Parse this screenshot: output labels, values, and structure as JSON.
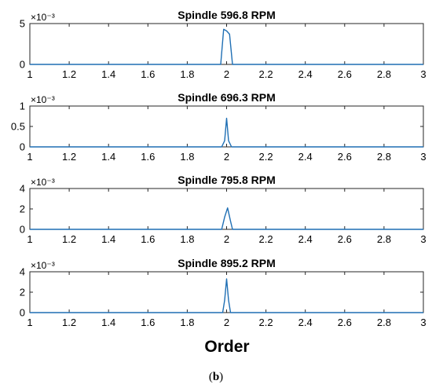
{
  "chart_data": [
    {
      "type": "line",
      "title": "Spindle 596.8 RPM",
      "xlim": [
        1,
        3
      ],
      "ylim": [
        0,
        5
      ],
      "y_scale_label": "×10⁻³",
      "xticks": [
        "1",
        "1.2",
        "1.4",
        "1.6",
        "1.8",
        "2",
        "2.2",
        "2.4",
        "2.6",
        "2.8",
        "3"
      ],
      "yticks": [
        "0",
        "5"
      ],
      "x": [
        1.0,
        1.97,
        1.985,
        2.0,
        2.015,
        2.03,
        3.0
      ],
      "y": [
        0.0,
        0.0,
        4.3,
        4.1,
        3.7,
        0.0,
        0.0
      ],
      "color": "#1f6fb4"
    },
    {
      "type": "line",
      "title": "Spindle 696.3 RPM",
      "xlim": [
        1,
        3
      ],
      "ylim": [
        0,
        1
      ],
      "y_scale_label": "×10⁻³",
      "xticks": [
        "1",
        "1.2",
        "1.4",
        "1.6",
        "1.8",
        "2",
        "2.2",
        "2.4",
        "2.6",
        "2.8",
        "3"
      ],
      "yticks": [
        "0",
        "0.5",
        "1"
      ],
      "x": [
        1.0,
        1.975,
        1.99,
        2.0,
        2.01,
        2.025,
        3.0
      ],
      "y": [
        0.0,
        0.0,
        0.15,
        0.7,
        0.15,
        0.0,
        0.0
      ],
      "color": "#1f6fb4"
    },
    {
      "type": "line",
      "title": "Spindle 795.8 RPM",
      "xlim": [
        1,
        3
      ],
      "ylim": [
        0,
        4
      ],
      "y_scale_label": "×10⁻³",
      "xticks": [
        "1",
        "1.2",
        "1.4",
        "1.6",
        "1.8",
        "2",
        "2.2",
        "2.4",
        "2.6",
        "2.8",
        "3"
      ],
      "yticks": [
        "0",
        "2",
        "4"
      ],
      "x": [
        1.0,
        1.975,
        1.99,
        2.005,
        2.02,
        2.03,
        3.0
      ],
      "y": [
        0.0,
        0.0,
        1.2,
        2.1,
        0.8,
        0.0,
        0.0
      ],
      "color": "#1f6fb4"
    },
    {
      "type": "line",
      "title": "Spindle 895.2 RPM",
      "xlim": [
        1,
        3
      ],
      "ylim": [
        0,
        4
      ],
      "y_scale_label": "×10⁻³",
      "xticks": [
        "1",
        "1.2",
        "1.4",
        "1.6",
        "1.8",
        "2",
        "2.2",
        "2.4",
        "2.6",
        "2.8",
        "3"
      ],
      "yticks": [
        "0",
        "2",
        "4"
      ],
      "x": [
        1.0,
        1.98,
        1.99,
        2.0,
        2.01,
        2.02,
        3.0
      ],
      "y": [
        0.0,
        0.0,
        1.2,
        3.3,
        1.2,
        0.0,
        0.0
      ],
      "color": "#1f6fb4"
    }
  ],
  "xlabel": "Order",
  "caption": {
    "open": "(",
    "letter": "b",
    "close": ")"
  }
}
